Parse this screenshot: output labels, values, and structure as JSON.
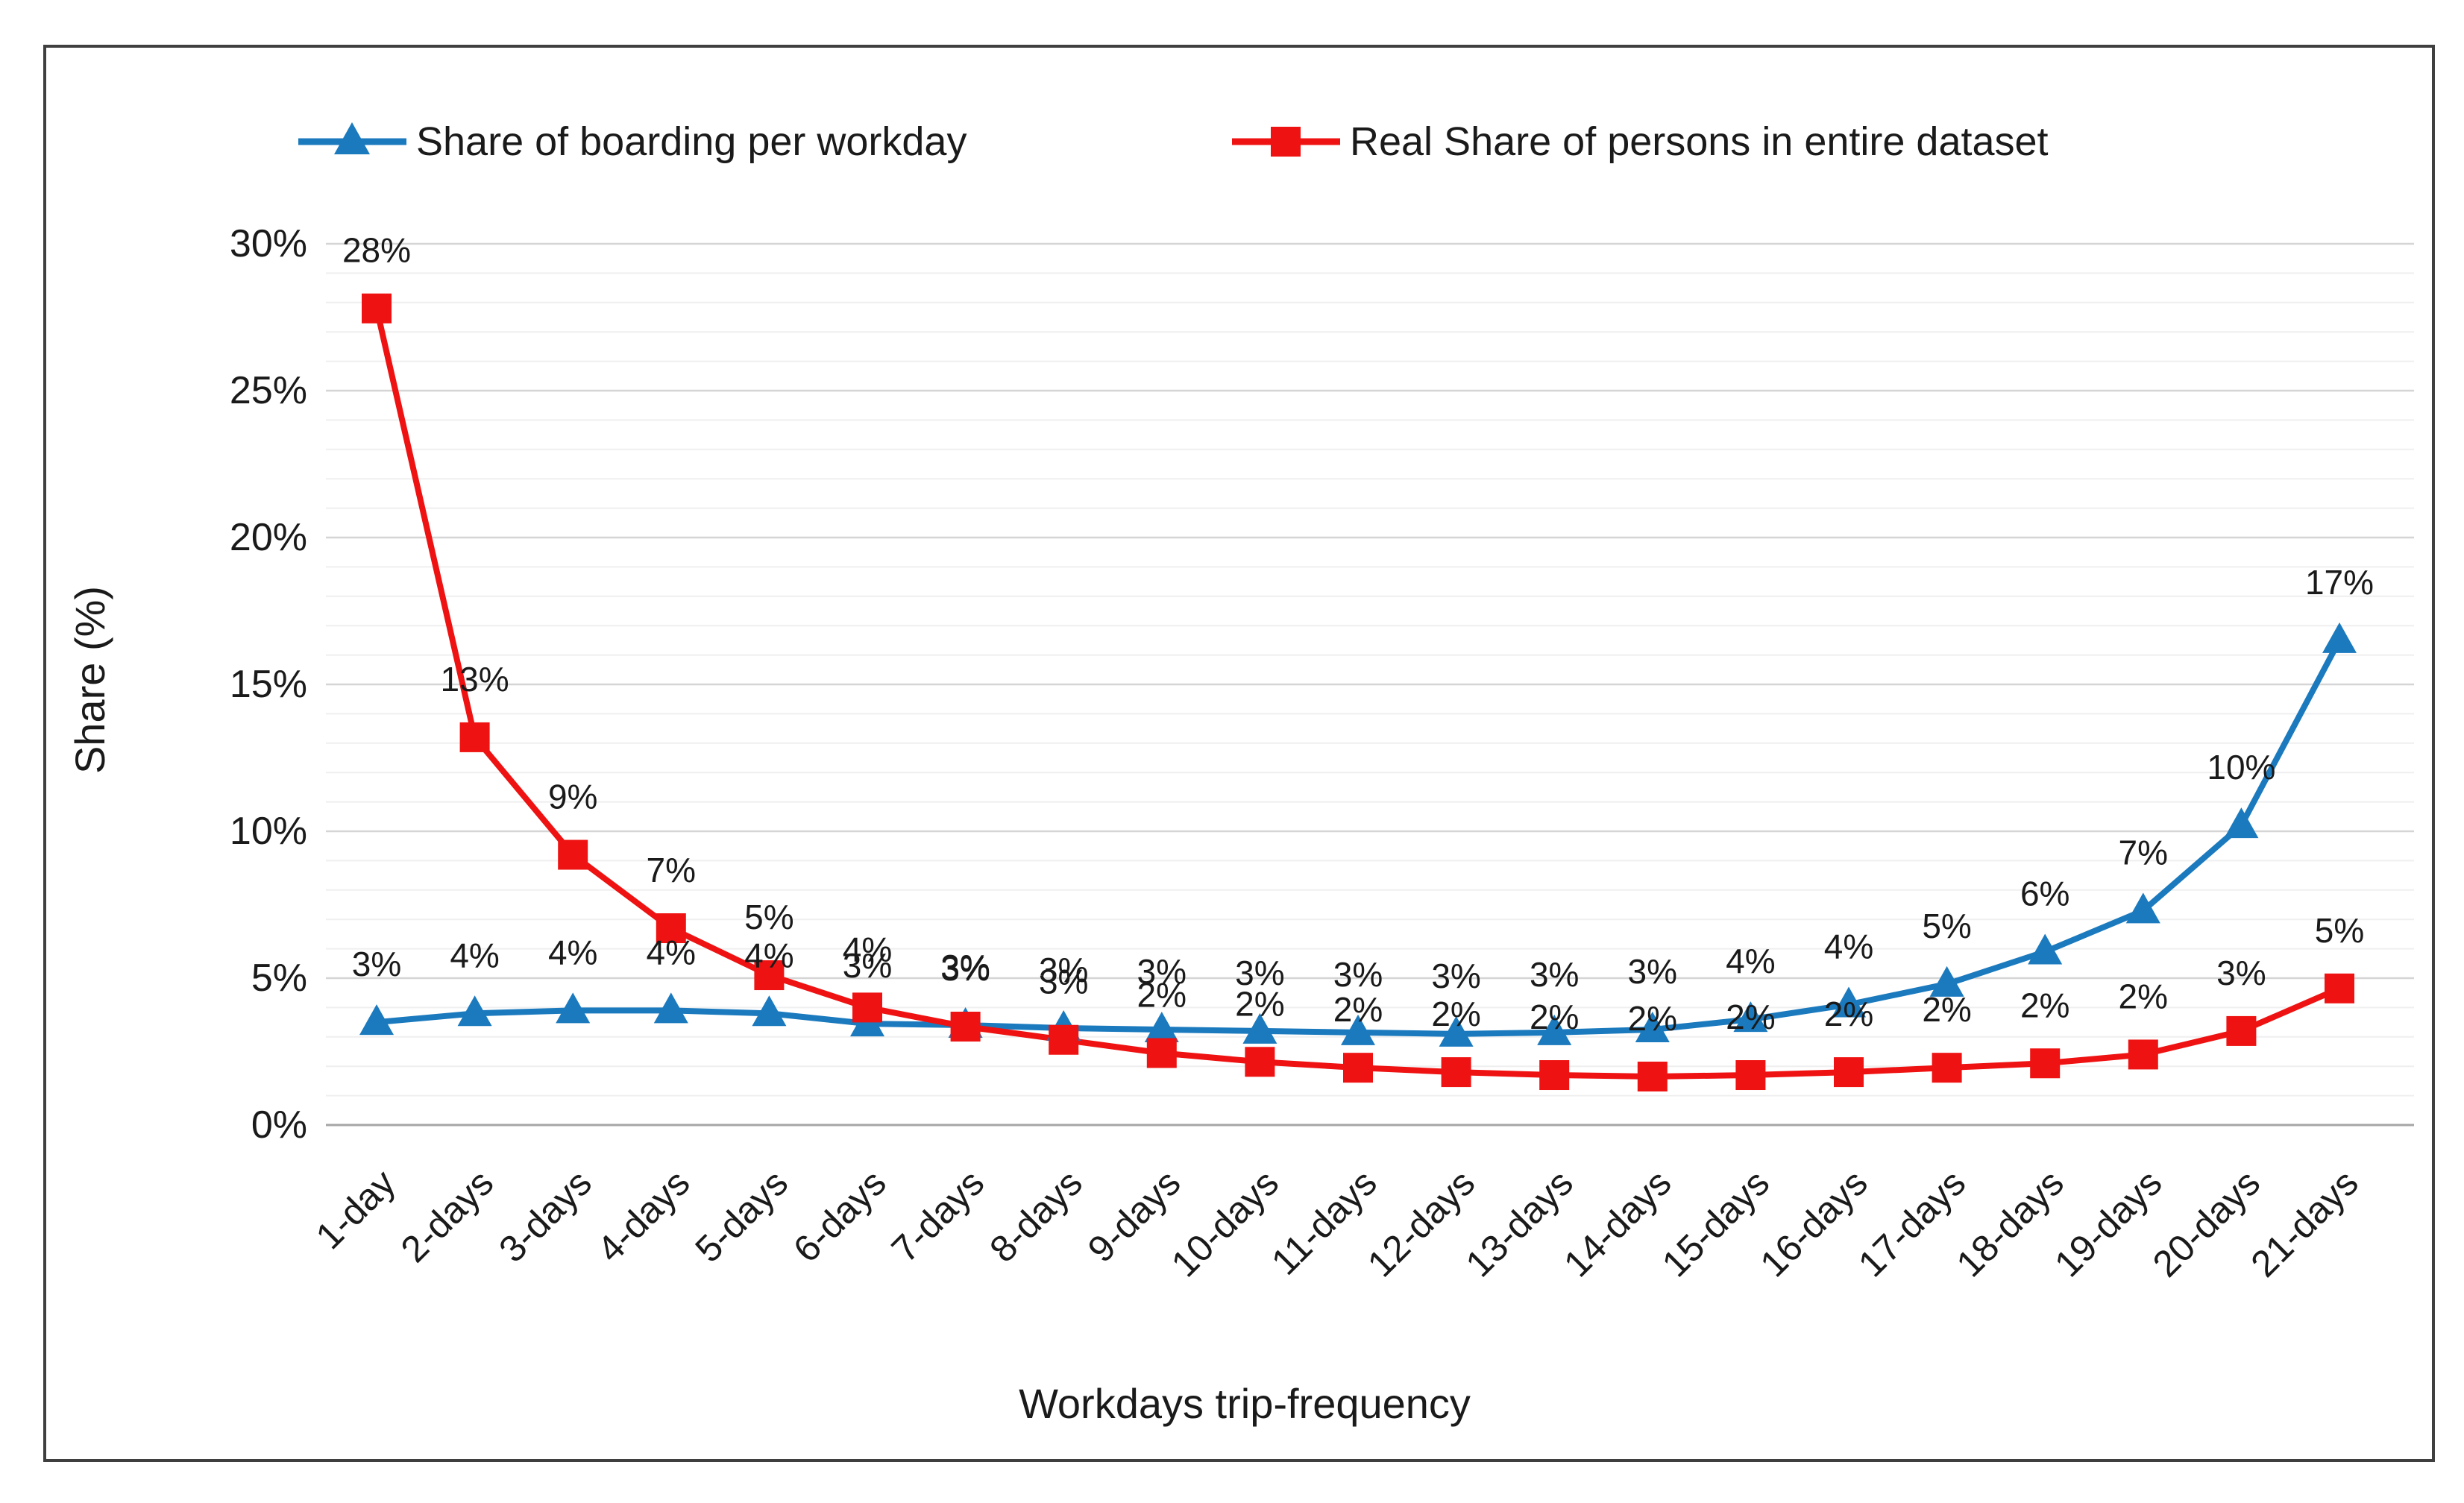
{
  "figure": {
    "background": "#ffffff",
    "border_color": "#3f3f3f"
  },
  "legend": {
    "items": [
      {
        "label": "Share of boarding per workday",
        "marker": "triangle",
        "color": "#1b7abe"
      },
      {
        "label": "Real Share of persons in entire dataset",
        "marker": "square",
        "color": "#ee1312"
      }
    ]
  },
  "chart_data": {
    "type": "line",
    "title": "",
    "xlabel": "Workdays trip-frequency",
    "ylabel": "Share (%)",
    "ylim": [
      0,
      30
    ],
    "ytick_major_step": 5,
    "ytick_minor_step": 1,
    "ytick_labels": [
      "0%",
      "5%",
      "10%",
      "15%",
      "20%",
      "25%",
      "30%"
    ],
    "grid": "on",
    "legend_position": "top",
    "categories": [
      "1-day",
      "2-days",
      "3-days",
      "4-days",
      "5-days",
      "6-days",
      "7-days",
      "8-days",
      "9-days",
      "10-days",
      "11-days",
      "12-days",
      "13-days",
      "14-days",
      "15-days",
      "16-days",
      "17-days",
      "18-days",
      "19-days",
      "20-days",
      "21-days"
    ],
    "series": [
      {
        "name": "Share of boarding per workday",
        "color": "#1b7abe",
        "marker": "triangle",
        "values": [
          3.5,
          3.8,
          3.9,
          3.9,
          3.8,
          3.45,
          3.4,
          3.3,
          3.25,
          3.2,
          3.15,
          3.1,
          3.15,
          3.25,
          3.6,
          4.1,
          4.8,
          5.9,
          7.3,
          10.2,
          16.5
        ],
        "labels": [
          "3%",
          "4%",
          "4%",
          "4%",
          "4%",
          "3%",
          "3%",
          "3%",
          "3%",
          "3%",
          "3%",
          "3%",
          "3%",
          "3%",
          "4%",
          "4%",
          "5%",
          "6%",
          "7%",
          "10%",
          "17%"
        ]
      },
      {
        "name": "Real Share of persons in entire dataset",
        "color": "#ee1312",
        "marker": "square",
        "values": [
          27.8,
          13.2,
          9.2,
          6.7,
          5.1,
          4.0,
          3.35,
          2.9,
          2.45,
          2.15,
          1.95,
          1.8,
          1.7,
          1.65,
          1.7,
          1.8,
          1.95,
          2.1,
          2.4,
          3.2,
          4.65
        ],
        "labels": [
          "28%",
          "13%",
          "9%",
          "7%",
          "5%",
          "4%",
          "3%",
          "3%",
          "2%",
          "2%",
          "2%",
          "2%",
          "2%",
          "2%",
          "2%",
          "2%",
          "2%",
          "2%",
          "2%",
          "3%",
          "5%"
        ]
      }
    ],
    "grid_colors": {
      "minor": "#efefef",
      "major": "#d5d5d5",
      "axis": "#a6a6a6"
    }
  }
}
